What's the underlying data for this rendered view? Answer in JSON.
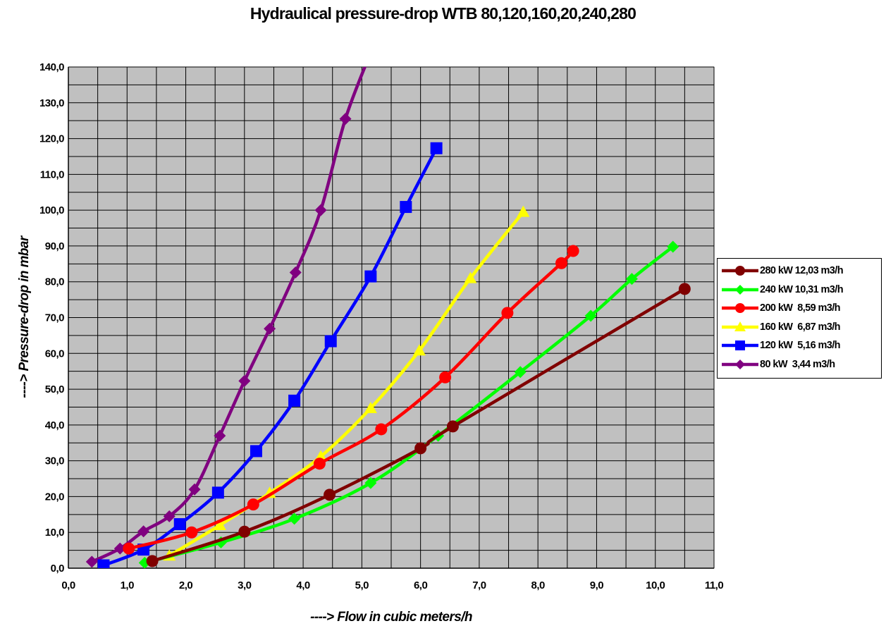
{
  "chart_data": {
    "type": "line",
    "title": "Hydraulical pressure-drop WTB 80,120,160,20,240,280",
    "xlabel": "----> Flow in cubic meters/h",
    "ylabel": "----> Pressure-drop in mbar",
    "xlim": [
      0,
      11
    ],
    "ylim": [
      0,
      140
    ],
    "x_ticks": [
      "0,0",
      "1,0",
      "2,0",
      "3,0",
      "4,0",
      "5,0",
      "6,0",
      "7,0",
      "8,0",
      "9,0",
      "10,0",
      "11,0"
    ],
    "y_ticks": [
      "0,0",
      "10,0",
      "20,0",
      "30,0",
      "40,0",
      "50,0",
      "60,0",
      "70,0",
      "80,0",
      "90,0",
      "100,0",
      "110,0",
      "120,0",
      "130,0",
      "140,0"
    ],
    "grid": true,
    "plot_background": "#c0c0c0",
    "legend_position": "right",
    "series": [
      {
        "name": "280 kW 12,03 m3/h",
        "color": "#800000",
        "marker": "circle",
        "points": [
          [
            1.43,
            2.0
          ],
          [
            3.0,
            10.2
          ],
          [
            4.45,
            20.5
          ],
          [
            6.0,
            33.5
          ],
          [
            6.55,
            39.6
          ],
          [
            10.5,
            78.0
          ]
        ]
      },
      {
        "name": "240 kW 10,31 m3/h",
        "color": "#00ff00",
        "marker": "diamond",
        "points": [
          [
            1.3,
            1.5
          ],
          [
            2.6,
            7.2
          ],
          [
            3.85,
            13.8
          ],
          [
            5.15,
            23.8
          ],
          [
            6.3,
            37.0
          ],
          [
            7.7,
            54.8
          ],
          [
            8.9,
            70.5
          ],
          [
            9.6,
            80.8
          ],
          [
            10.3,
            89.8
          ]
        ]
      },
      {
        "name": "200 kW  8,59 m3/h",
        "color": "#ff0000",
        "marker": "circle",
        "points": [
          [
            1.03,
            5.5
          ],
          [
            2.1,
            10.0
          ],
          [
            3.15,
            17.8
          ],
          [
            4.28,
            29.2
          ],
          [
            5.33,
            38.8
          ],
          [
            6.42,
            53.3
          ],
          [
            7.48,
            71.3
          ],
          [
            8.4,
            85.2
          ],
          [
            8.6,
            88.6
          ]
        ]
      },
      {
        "name": "160 kW  6,87 m3/h",
        "color": "#ffff00",
        "marker": "triangle",
        "points": [
          [
            1.72,
            3.5
          ],
          [
            2.58,
            12.0
          ],
          [
            3.43,
            21.0
          ],
          [
            4.3,
            31.2
          ],
          [
            5.15,
            44.7
          ],
          [
            5.98,
            60.8
          ],
          [
            6.85,
            81.0
          ],
          [
            7.75,
            99.5
          ]
        ]
      },
      {
        "name": "120 kW  5,16 m3/h",
        "color": "#0000ff",
        "marker": "square",
        "points": [
          [
            0.6,
            0.8
          ],
          [
            1.28,
            5.2
          ],
          [
            1.9,
            12.3
          ],
          [
            2.55,
            21.1
          ],
          [
            3.2,
            32.7
          ],
          [
            3.85,
            46.8
          ],
          [
            4.47,
            63.4
          ],
          [
            5.15,
            81.5
          ],
          [
            5.75,
            100.9
          ],
          [
            6.27,
            117.3
          ]
        ]
      },
      {
        "name": "80 kW  3,44 m3/h",
        "color": "#800080",
        "marker": "diamond",
        "points": [
          [
            0.4,
            1.8
          ],
          [
            0.88,
            5.5
          ],
          [
            1.28,
            10.3
          ],
          [
            1.72,
            14.5
          ],
          [
            2.15,
            22.0
          ],
          [
            2.58,
            37.0
          ],
          [
            3.0,
            52.3
          ],
          [
            3.43,
            66.9
          ],
          [
            3.87,
            82.6
          ],
          [
            4.3,
            100.0
          ],
          [
            4.72,
            125.5
          ],
          [
            5.15,
            144.0
          ]
        ]
      }
    ]
  }
}
